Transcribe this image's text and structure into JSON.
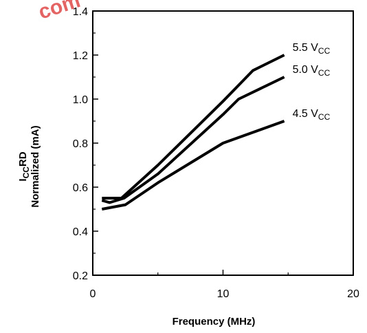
{
  "watermark": "com",
  "chart_data": {
    "type": "line",
    "xlabel": "Frequency (MHz)",
    "ylabel": {
      "line1_main": "I",
      "line1_sub": "CC",
      "line1_tail": "RD",
      "line2": "Normalized (mA)"
    },
    "xlim": [
      0,
      20
    ],
    "ylim": [
      0.2,
      1.4
    ],
    "x_ticks": [
      0,
      10,
      20
    ],
    "x_tick_labels": [
      "0",
      "10",
      "20"
    ],
    "y_ticks": [
      0.2,
      0.4,
      0.6,
      0.8,
      1.0,
      1.2,
      1.4
    ],
    "y_tick_labels": [
      "0.2",
      "0.4",
      "0.6",
      "0.8",
      "1.0",
      "1.2",
      "1.4"
    ],
    "grid": false,
    "series": [
      {
        "label_main": "5.5 V",
        "label_sub": "CC",
        "x": [
          0.7,
          1.3,
          2.2,
          5.0,
          10.0,
          12.3,
          14.7
        ],
        "y": [
          0.55,
          0.55,
          0.55,
          0.7,
          0.99,
          1.13,
          1.2
        ]
      },
      {
        "label_main": "5.0 V",
        "label_sub": "CC",
        "x": [
          0.7,
          1.3,
          2.4,
          5.0,
          10.0,
          11.2,
          14.7
        ],
        "y": [
          0.54,
          0.53,
          0.55,
          0.66,
          0.93,
          1.0,
          1.1
        ]
      },
      {
        "label_main": "4.5 V",
        "label_sub": "CC",
        "x": [
          0.7,
          2.5,
          5.0,
          10.0,
          14.7
        ],
        "y": [
          0.5,
          0.52,
          0.62,
          0.8,
          0.9
        ]
      }
    ]
  }
}
